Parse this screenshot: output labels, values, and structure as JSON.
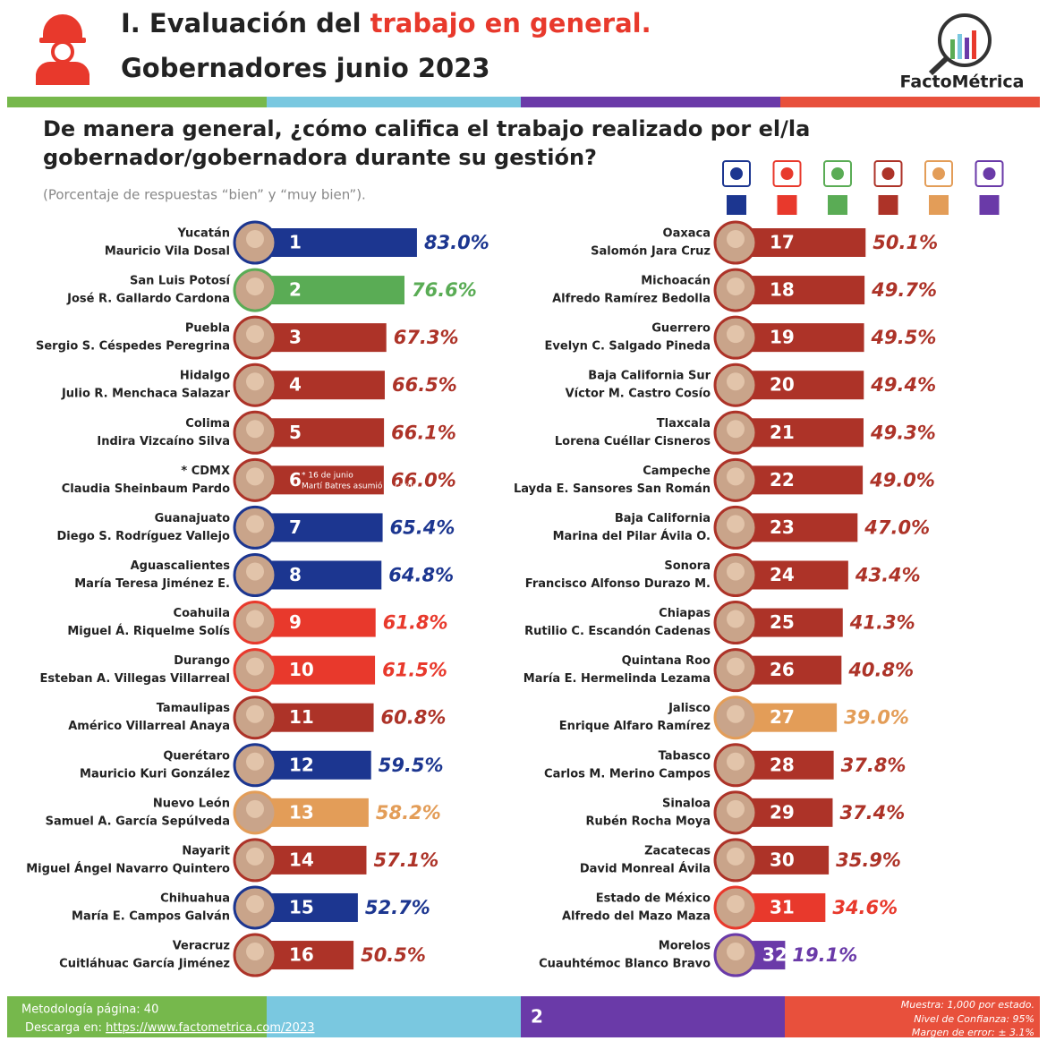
{
  "header": {
    "title_part1": "I. Evaluación del ",
    "title_part2": "trabajo en general.",
    "subtitle": "Gobernadores junio 2023",
    "brand": "FactoMétrica"
  },
  "question": {
    "line1": "De manera general, ¿cómo califica el trabajo realizado por el/la",
    "line2": "gobernador/gobernadora durante su gestión?",
    "note": "(Porcentaje de respuestas “bien” y “muy bien”)."
  },
  "chart_data": {
    "type": "bar",
    "categories": [
      "Yucatán",
      "San Luis Potosí",
      "Puebla",
      "Hidalgo",
      "Colima",
      "* CDMX",
      "Guanajuato",
      "Aguascalientes",
      "Coahuila",
      "Durango",
      "Tamaulipas",
      "Querétaro",
      "Nuevo León",
      "Nayarit",
      "Chihuahua",
      "Veracruz",
      "Oaxaca",
      "Michoacán",
      "Guerrero",
      "Baja California Sur",
      "Tlaxcala",
      "Campeche",
      "Baja California",
      "Sonora",
      "Chiapas",
      "Quintana Roo",
      "Jalisco",
      "Tabasco",
      "Sinaloa",
      "Zacatecas",
      "Estado de México",
      "Morelos"
    ],
    "governors": [
      "Mauricio Vila Dosal",
      "José R. Gallardo Cardona",
      "Sergio S. Céspedes Peregrina",
      "Julio R. Menchaca Salazar",
      "Indira Vizcaíno Silva",
      "Claudia Sheinbaum Pardo",
      "Diego S. Rodríguez Vallejo",
      "María Teresa Jiménez E.",
      "Miguel Á. Riquelme Solís",
      "Esteban A. Villegas Villarreal",
      "Américo Villarreal Anaya",
      "Mauricio Kuri González",
      "Samuel A. García Sepúlveda",
      "Miguel Ángel Navarro Quintero",
      "María E. Campos Galván",
      "Cuitláhuac García Jiménez",
      "Salomón Jara Cruz",
      "Alfredo Ramírez Bedolla",
      "Evelyn C. Salgado Pineda",
      "Víctor M. Castro Cosío",
      "Lorena Cuéllar Cisneros",
      "Layda E. Sansores San Román",
      "Marina del Pilar Ávila O.",
      "Francisco Alfonso Durazo M.",
      "Rutilio C. Escandón Cadenas",
      "María E. Hermelinda Lezama",
      "Enrique Alfaro Ramírez",
      "Carlos M. Merino Campos",
      "Rubén Rocha Moya",
      "David Monreal Ávila",
      "Alfredo del Mazo Maza",
      "Cuauhtémoc Blanco Bravo"
    ],
    "ranks": [
      1,
      2,
      3,
      4,
      5,
      6,
      7,
      8,
      9,
      10,
      11,
      12,
      13,
      14,
      15,
      16,
      17,
      18,
      19,
      20,
      21,
      22,
      23,
      24,
      25,
      26,
      27,
      28,
      29,
      30,
      31,
      32
    ],
    "values": [
      83.0,
      76.6,
      67.3,
      66.5,
      66.1,
      66.0,
      65.4,
      64.8,
      61.8,
      61.5,
      60.8,
      59.5,
      58.2,
      57.1,
      52.7,
      50.5,
      50.1,
      49.7,
      49.5,
      49.4,
      49.3,
      49.0,
      47.0,
      43.4,
      41.3,
      40.8,
      39.0,
      37.8,
      37.4,
      35.9,
      34.6,
      19.1
    ],
    "value_labels": [
      "83.0%",
      "76.6%",
      "67.3%",
      "66.5%",
      "66.1%",
      "66.0%",
      "65.4%",
      "64.8%",
      "61.8%",
      "61.5%",
      "60.8%",
      "59.5%",
      "58.2%",
      "57.1%",
      "52.7%",
      "50.5%",
      "50.1%",
      "49.7%",
      "49.5%",
      "49.4%",
      "49.3%",
      "49.0%",
      "47.0%",
      "43.4%",
      "41.3%",
      "40.8%",
      "39.0%",
      "37.8%",
      "37.4%",
      "35.9%",
      "34.6%",
      "19.1%"
    ],
    "colors": [
      "#1c3690",
      "#5aac55",
      "#ad3328",
      "#ad3328",
      "#ad3328",
      "#ad3328",
      "#1c3690",
      "#1c3690",
      "#e8392c",
      "#e8392c",
      "#ad3328",
      "#1c3690",
      "#e39d58",
      "#ad3328",
      "#1c3690",
      "#ad3328",
      "#ad3328",
      "#ad3328",
      "#ad3328",
      "#ad3328",
      "#ad3328",
      "#ad3328",
      "#ad3328",
      "#ad3328",
      "#ad3328",
      "#ad3328",
      "#e39d58",
      "#ad3328",
      "#ad3328",
      "#ad3328",
      "#e8392c",
      "#6a3aa8"
    ],
    "annotation": "* 16 de junio Martí Batres asumió el cargo.",
    "legend_colors": [
      "#1c3690",
      "#e8392c",
      "#5aac55",
      "#ad3328",
      "#e39d58",
      "#6a3aa8"
    ]
  },
  "footer": {
    "methodology": "Metodología página: 40",
    "download_prefix": "Descarga en: ",
    "url": "https://www.factometrica.com/2023",
    "page": "2",
    "sample": "Muestra:  1,000 por estado.",
    "confidence": "Nivel de Confianza: 95%",
    "margin": "Margen de error: ± 3.1%"
  }
}
